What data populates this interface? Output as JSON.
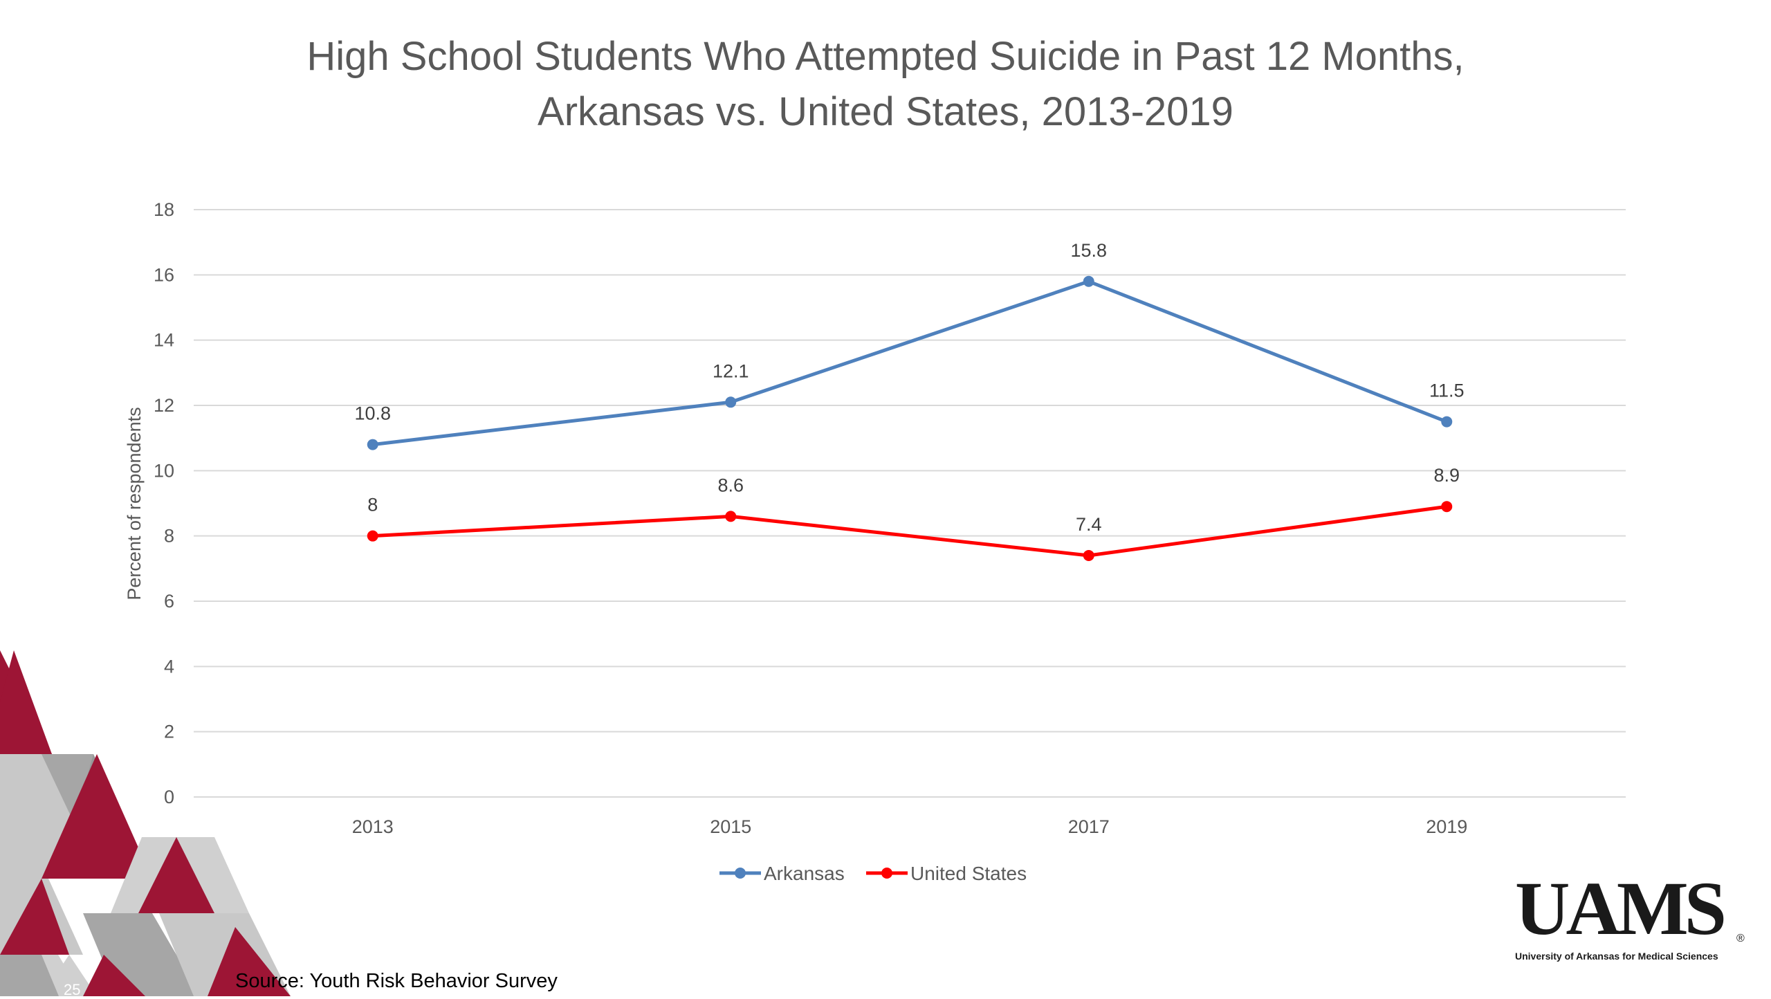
{
  "slide": {
    "title_line1": "High School Students Who Attempted Suicide in Past 12 Months,",
    "title_line2": "Arkansas vs. United States, 2013-2019",
    "source": "Source: Youth Risk Behavior Survey",
    "slide_number": "25",
    "logo_text": "UAMS",
    "logo_subtext": "University of Arkansas for Medical Sciences",
    "logo_mark": "®"
  },
  "chart_data": {
    "type": "line",
    "title": "High School Students Who Attempted Suicide in Past 12 Months, Arkansas vs. United States, 2013-2019",
    "categories": [
      "2013",
      "2015",
      "2017",
      "2019"
    ],
    "series": [
      {
        "name": "Arkansas",
        "values": [
          10.8,
          12.1,
          15.8,
          11.5
        ],
        "color": "#4F81BD"
      },
      {
        "name": "United States",
        "values": [
          8,
          8.6,
          7.4,
          8.9
        ],
        "color": "#FF0000"
      }
    ],
    "xlabel": "",
    "ylabel": "Percent of respondents",
    "ylim": [
      0,
      18
    ],
    "yticks": [
      0,
      2,
      4,
      6,
      8,
      10,
      12,
      14,
      16,
      18
    ],
    "grid": true,
    "legend": "bottom",
    "data_labels": true
  },
  "colors": {
    "gridline": "#D9D9D9",
    "text_gray": "#595959",
    "accent_red": "#9D1535",
    "accent_gray": "#A6A6A6",
    "accent_light": "#D0D0D0"
  }
}
